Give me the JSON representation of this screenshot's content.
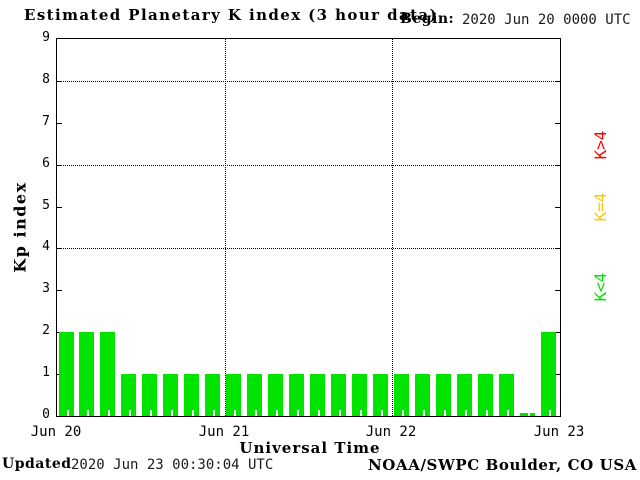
{
  "title": "Estimated Planetary K index (3 hour data)",
  "begin": {
    "label": "Begin:",
    "value": "2020 Jun 20 0000 UTC"
  },
  "y_axis": {
    "label": "Kp index",
    "tick_labels": [
      "0",
      "1",
      "2",
      "3",
      "4",
      "5",
      "6",
      "7",
      "8",
      "9"
    ]
  },
  "x_axis": {
    "label": "Universal Time",
    "tick_labels": [
      "Jun 20",
      "Jun 21",
      "Jun 22",
      "Jun 23"
    ]
  },
  "legend": [
    {
      "label": "K>4",
      "color": "#ff0000"
    },
    {
      "label": "K=4",
      "color": "#ffc800"
    },
    {
      "label": "K<4",
      "color": "#00e400"
    }
  ],
  "footer": {
    "updated_label": "Updated",
    "updated_value": "2020 Jun 23 00:30:04 UTC",
    "credit": "NOAA/SWPC Boulder, CO USA"
  },
  "colors": {
    "bar": "#00e400",
    "frame": "#000000",
    "background": "#ffffff"
  },
  "chart_data": {
    "type": "bar",
    "title": "Estimated Planetary K index (3 hour data)",
    "xlabel": "Universal Time",
    "ylabel": "Kp index",
    "ylim": [
      0,
      9
    ],
    "interval_hours": 3,
    "x_tick_labels": [
      "Jun 20",
      "Jun 21",
      "Jun 22",
      "Jun 23"
    ],
    "gridlines_y": [
      4,
      6,
      8
    ],
    "grid": true,
    "legend_position": "right",
    "values": [
      2,
      2,
      2,
      1,
      1,
      1,
      1,
      1,
      1,
      1,
      1,
      1,
      1,
      1,
      1,
      1,
      1,
      1,
      1,
      1,
      1,
      1,
      0,
      2
    ]
  }
}
